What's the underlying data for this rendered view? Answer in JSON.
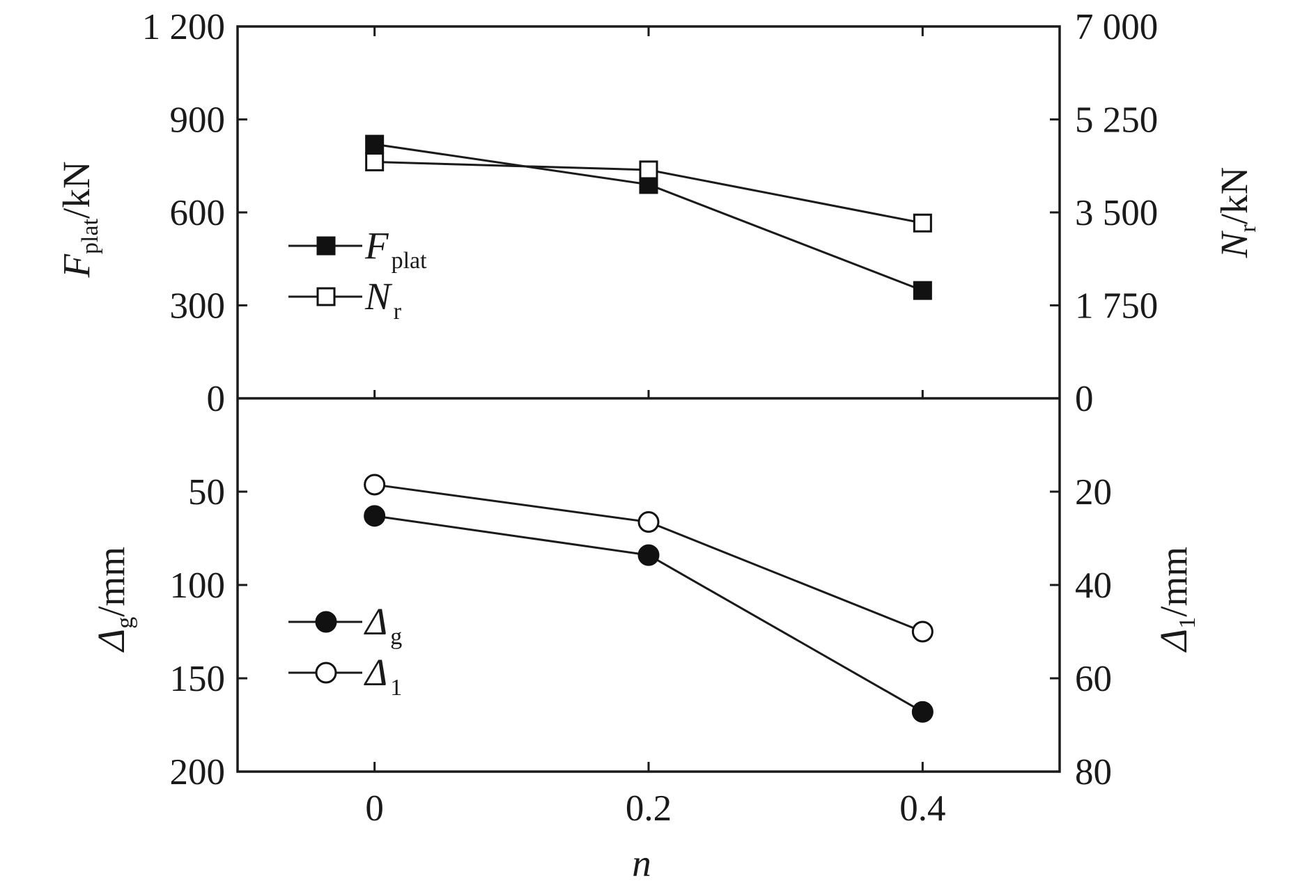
{
  "chart_data": [
    {
      "panel": "top",
      "type": "line",
      "x": [
        0,
        0.2,
        0.4
      ],
      "xlabel": "n",
      "xlim": [
        -0.1,
        0.5
      ],
      "xticks": [
        "0",
        "0.2",
        "0.4"
      ],
      "ylabel_left": {
        "main": "F",
        "sub": "plat",
        "tail": "/kN"
      },
      "ylabel_right": {
        "main": "N",
        "sub": "r",
        "tail": "/kN"
      },
      "ylim_left": [
        0,
        1200
      ],
      "ylim_right": [
        0,
        7000
      ],
      "yticks_left": [
        "0",
        "300",
        "600",
        "900",
        "1 200"
      ],
      "yticks_right": [
        "0",
        "1 750",
        "3 500",
        "5 250",
        "7 000"
      ],
      "legend_position": "left-middle",
      "series": [
        {
          "name": {
            "main": "F",
            "sub": "plat"
          },
          "axis": "left",
          "marker": "filled-square",
          "values": [
            820,
            690,
            348
          ]
        },
        {
          "name": {
            "main": "N",
            "sub": "r"
          },
          "axis": "right",
          "marker": "open-square",
          "values": [
            4450,
            4300,
            3300
          ]
        }
      ]
    },
    {
      "panel": "bottom",
      "type": "line",
      "x": [
        0,
        0.2,
        0.4
      ],
      "xlabel": "n",
      "xlim": [
        -0.1,
        0.5
      ],
      "xticks": [
        "0",
        "0.2",
        "0.4"
      ],
      "ylabel_left": {
        "main": "Δ",
        "sub": "g",
        "tail": "/mm"
      },
      "ylabel_right": {
        "main": "Δ",
        "sub": "1",
        "tail": "/mm"
      },
      "ylim_left": [
        0,
        200
      ],
      "ylim_right": [
        0,
        80
      ],
      "y_inverted": true,
      "yticks_left": [
        "0",
        "50",
        "100",
        "150",
        "200"
      ],
      "yticks_right": [
        "20",
        "40",
        "60",
        "80"
      ],
      "legend_position": "left-bottom",
      "series": [
        {
          "name": {
            "main": "Δ",
            "sub": "g"
          },
          "axis": "left",
          "marker": "filled-circle",
          "values": [
            63,
            84,
            168
          ]
        },
        {
          "name": {
            "main": "Δ",
            "sub": "1"
          },
          "axis": "right",
          "marker": "open-circle",
          "values": [
            18.5,
            26.5,
            50
          ]
        }
      ]
    }
  ]
}
